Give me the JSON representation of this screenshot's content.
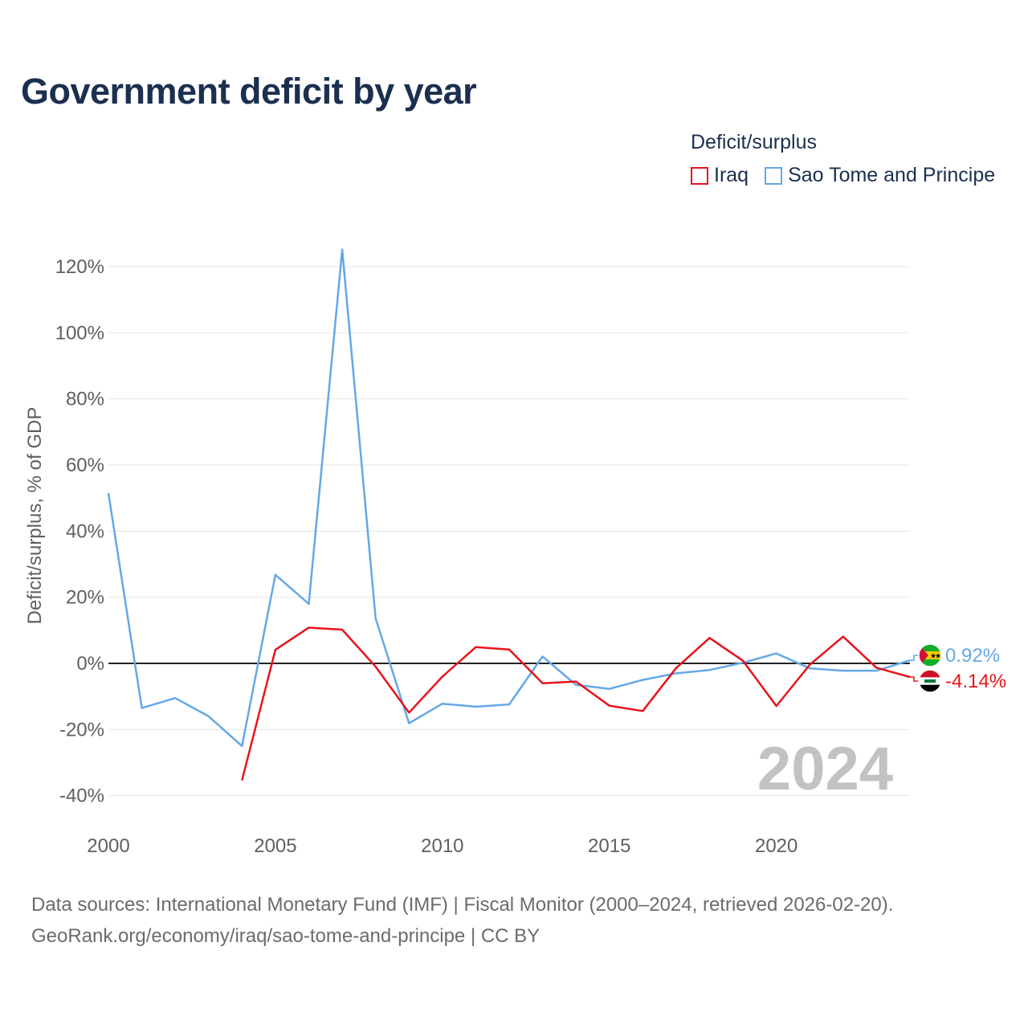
{
  "title": "Government deficit by year",
  "legend": {
    "title": "Deficit/surplus",
    "items": [
      {
        "label": "Iraq",
        "color": "#e8141b"
      },
      {
        "label": "Sao Tome and Principe",
        "color": "#63a8e6"
      }
    ]
  },
  "watermark_year": "2024",
  "end_labels": {
    "stp": "0.92%",
    "iraq": "-4.14%"
  },
  "source": {
    "line1": "Data sources: International Monetary Fund (IMF) | Fiscal Monitor (2000–2024, retrieved 2026-02-20).",
    "line2": "GeoRank.org/economy/iraq/sao-tome-and-principe | CC BY"
  },
  "chart_data": {
    "type": "line",
    "title": "Government deficit by year",
    "xlabel": "",
    "ylabel": "Deficit/surplus, % of GDP",
    "xlim": [
      2000,
      2024
    ],
    "ylim": [
      -45,
      128
    ],
    "x_ticks": [
      2000,
      2005,
      2010,
      2015,
      2020
    ],
    "y_ticks": [
      -40,
      -20,
      0,
      20,
      40,
      60,
      80,
      100,
      120
    ],
    "y_tick_labels": [
      "-40%",
      "-20%",
      "0%",
      "20%",
      "40%",
      "60%",
      "80%",
      "100%",
      "120%"
    ],
    "series": [
      {
        "name": "Iraq",
        "color": "#e8141b",
        "x": [
          2004,
          2005,
          2006,
          2007,
          2008,
          2009,
          2010,
          2011,
          2012,
          2013,
          2014,
          2015,
          2016,
          2017,
          2018,
          2019,
          2020,
          2021,
          2022,
          2023,
          2024
        ],
        "values": [
          -35.4,
          4.1,
          10.8,
          10.2,
          -1.0,
          -14.9,
          -4.0,
          4.9,
          4.2,
          -6.0,
          -5.5,
          -12.8,
          -14.4,
          -1.4,
          7.7,
          0.8,
          -12.9,
          -0.4,
          8.1,
          -1.3,
          -4.14
        ]
      },
      {
        "name": "Sao Tome and Principe",
        "color": "#63a8e6",
        "x": [
          2000,
          2001,
          2002,
          2003,
          2004,
          2005,
          2006,
          2007,
          2008,
          2009,
          2010,
          2011,
          2012,
          2013,
          2014,
          2015,
          2016,
          2017,
          2018,
          2019,
          2020,
          2021,
          2022,
          2023,
          2024
        ],
        "values": [
          51.5,
          -13.5,
          -10.5,
          -16.0,
          -25.0,
          26.8,
          18.0,
          125.2,
          13.6,
          -18.1,
          -12.2,
          -13.1,
          -12.4,
          2.1,
          -6.5,
          -7.7,
          -5.0,
          -3.0,
          -2.0,
          0.2,
          3.0,
          -1.5,
          -2.2,
          -2.2,
          0.92
        ]
      }
    ]
  }
}
